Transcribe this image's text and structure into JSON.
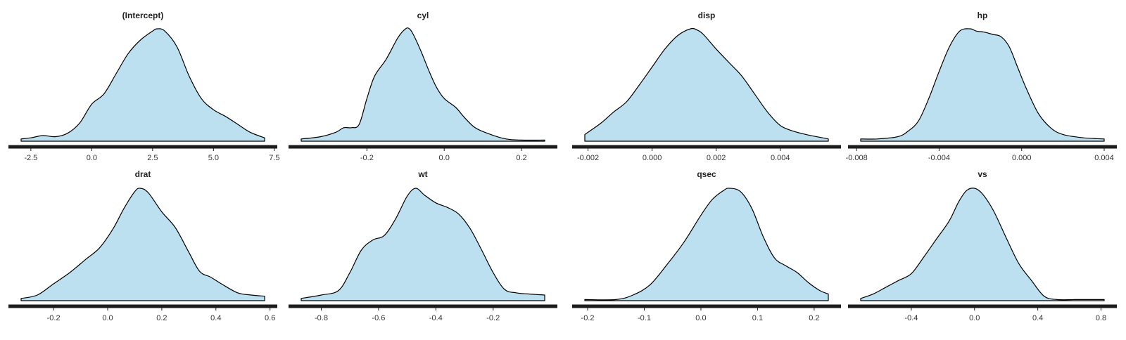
{
  "chart_data": [
    {
      "type": "area",
      "title": "(Intercept)",
      "xlim": [
        -2.9,
        7.1
      ],
      "ticks": [
        -2.5,
        0.0,
        2.5,
        5.0,
        7.5
      ],
      "tick_labels": [
        "-2.5",
        "0.0",
        "2.5",
        "5.0",
        "7.5"
      ],
      "x": [
        -2.9,
        -2.5,
        -2.0,
        -1.5,
        -1.0,
        -0.5,
        0.0,
        0.5,
        1.0,
        1.5,
        2.0,
        2.5,
        2.7,
        3.0,
        3.5,
        4.0,
        4.5,
        5.0,
        5.5,
        6.0,
        6.5,
        7.1
      ],
      "y": [
        0.02,
        0.03,
        0.05,
        0.04,
        0.07,
        0.16,
        0.33,
        0.42,
        0.6,
        0.78,
        0.9,
        0.98,
        1.0,
        0.98,
        0.84,
        0.58,
        0.38,
        0.28,
        0.22,
        0.15,
        0.08,
        0.03
      ]
    },
    {
      "type": "area",
      "title": "cyl",
      "xlim": [
        -0.37,
        0.26
      ],
      "ticks": [
        -0.2,
        0.0,
        0.2
      ],
      "tick_labels": [
        "-0.2",
        "0.0",
        "0.2"
      ],
      "x": [
        -0.37,
        -0.32,
        -0.28,
        -0.26,
        -0.24,
        -0.22,
        -0.2,
        -0.18,
        -0.15,
        -0.12,
        -0.1,
        -0.09,
        -0.08,
        -0.06,
        -0.04,
        -0.02,
        0.0,
        0.03,
        0.05,
        0.08,
        0.12,
        0.16,
        0.2,
        0.26
      ],
      "y": [
        0.02,
        0.04,
        0.08,
        0.12,
        0.12,
        0.15,
        0.38,
        0.58,
        0.73,
        0.92,
        1.0,
        1.0,
        0.95,
        0.8,
        0.63,
        0.48,
        0.38,
        0.3,
        0.22,
        0.12,
        0.06,
        0.02,
        0.01,
        0.01
      ]
    },
    {
      "type": "area",
      "title": "disp",
      "xlim": [
        -0.0021,
        0.0055
      ],
      "ticks": [
        -0.002,
        0.0,
        0.002,
        0.004
      ],
      "tick_labels": [
        "-0.002",
        "0.000",
        "0.002",
        "0.004"
      ],
      "x": [
        -0.0021,
        -0.0016,
        -0.0012,
        -0.0008,
        -0.0004,
        0.0,
        0.0004,
        0.0008,
        0.0012,
        0.0014,
        0.0016,
        0.002,
        0.0024,
        0.0028,
        0.0032,
        0.0036,
        0.004,
        0.0044,
        0.0048,
        0.0055
      ],
      "y": [
        0.06,
        0.16,
        0.26,
        0.35,
        0.5,
        0.66,
        0.82,
        0.94,
        1.0,
        0.99,
        0.95,
        0.82,
        0.7,
        0.58,
        0.42,
        0.26,
        0.14,
        0.09,
        0.06,
        0.02
      ]
    },
    {
      "type": "area",
      "title": "hp",
      "xlim": [
        -0.0078,
        0.004
      ],
      "ticks": [
        -0.008,
        -0.004,
        0.0,
        0.004
      ],
      "tick_labels": [
        "-0.008",
        "-0.004",
        "0.000",
        "0.004"
      ],
      "x": [
        -0.0078,
        -0.007,
        -0.006,
        -0.0055,
        -0.005,
        -0.0045,
        -0.004,
        -0.0035,
        -0.003,
        -0.0025,
        -0.0022,
        -0.0018,
        -0.0014,
        -0.001,
        -0.0006,
        -0.0002,
        0.0002,
        0.0008,
        0.0014,
        0.002,
        0.003,
        0.004
      ],
      "y": [
        0.02,
        0.02,
        0.04,
        0.09,
        0.18,
        0.38,
        0.62,
        0.84,
        0.98,
        1.0,
        0.98,
        0.97,
        0.95,
        0.93,
        0.84,
        0.66,
        0.48,
        0.25,
        0.12,
        0.06,
        0.03,
        0.02
      ]
    },
    {
      "type": "area",
      "title": "drat",
      "xlim": [
        -0.32,
        0.58
      ],
      "ticks": [
        -0.2,
        0.0,
        0.2,
        0.4,
        0.6
      ],
      "tick_labels": [
        "-0.2",
        "0.0",
        "0.2",
        "0.4",
        "0.6"
      ],
      "x": [
        -0.32,
        -0.26,
        -0.2,
        -0.14,
        -0.08,
        -0.03,
        0.02,
        0.06,
        0.1,
        0.12,
        0.15,
        0.2,
        0.25,
        0.3,
        0.34,
        0.38,
        0.42,
        0.48,
        0.53,
        0.58
      ],
      "y": [
        0.02,
        0.05,
        0.15,
        0.25,
        0.37,
        0.47,
        0.64,
        0.82,
        0.97,
        1.0,
        0.96,
        0.79,
        0.65,
        0.43,
        0.26,
        0.21,
        0.15,
        0.07,
        0.05,
        0.04
      ]
    },
    {
      "type": "area",
      "title": "wt",
      "xlim": [
        -0.87,
        -0.02
      ],
      "ticks": [
        -0.8,
        -0.6,
        -0.4,
        -0.2
      ],
      "tick_labels": [
        "-0.8",
        "-0.6",
        "-0.4",
        "-0.2"
      ],
      "x": [
        -0.87,
        -0.8,
        -0.74,
        -0.7,
        -0.66,
        -0.62,
        -0.58,
        -0.54,
        -0.5,
        -0.47,
        -0.44,
        -0.4,
        -0.36,
        -0.32,
        -0.28,
        -0.24,
        -0.2,
        -0.16,
        -0.12,
        -0.08,
        -0.02
      ],
      "y": [
        0.02,
        0.05,
        0.09,
        0.25,
        0.45,
        0.54,
        0.58,
        0.73,
        0.93,
        1.0,
        0.94,
        0.87,
        0.83,
        0.77,
        0.64,
        0.45,
        0.25,
        0.1,
        0.07,
        0.06,
        0.05
      ]
    },
    {
      "type": "area",
      "title": "qsec",
      "xlim": [
        -0.205,
        0.225
      ],
      "ticks": [
        -0.2,
        -0.1,
        0.0,
        0.1,
        0.2
      ],
      "tick_labels": [
        "-0.2",
        "-0.1",
        "0.0",
        "0.1",
        "0.2"
      ],
      "x": [
        -0.205,
        -0.15,
        -0.12,
        -0.09,
        -0.06,
        -0.03,
        0.0,
        0.02,
        0.04,
        0.05,
        0.07,
        0.09,
        0.11,
        0.13,
        0.15,
        0.17,
        0.19,
        0.21,
        0.225
      ],
      "y": [
        0.01,
        0.01,
        0.05,
        0.14,
        0.32,
        0.52,
        0.76,
        0.9,
        0.98,
        1.0,
        0.97,
        0.82,
        0.57,
        0.38,
        0.31,
        0.25,
        0.16,
        0.09,
        0.06
      ]
    },
    {
      "type": "area",
      "title": "vs",
      "xlim": [
        -0.72,
        0.82
      ],
      "ticks": [
        -0.4,
        0.0,
        0.4,
        0.8
      ],
      "tick_labels": [
        "-0.4",
        "0.0",
        "0.4",
        "0.8"
      ],
      "x": [
        -0.72,
        -0.64,
        -0.56,
        -0.48,
        -0.4,
        -0.32,
        -0.24,
        -0.16,
        -0.1,
        -0.05,
        0.0,
        0.05,
        0.12,
        0.2,
        0.28,
        0.36,
        0.44,
        0.52,
        0.64,
        0.82
      ],
      "y": [
        0.02,
        0.06,
        0.12,
        0.18,
        0.24,
        0.39,
        0.55,
        0.71,
        0.88,
        0.98,
        1.0,
        0.95,
        0.8,
        0.56,
        0.33,
        0.18,
        0.04,
        0.01,
        0.01,
        0.01
      ]
    }
  ],
  "colors": {
    "fill": "#bde0f0",
    "outline": "#000000",
    "axis": "#1c1c1c",
    "text": "#222222"
  }
}
